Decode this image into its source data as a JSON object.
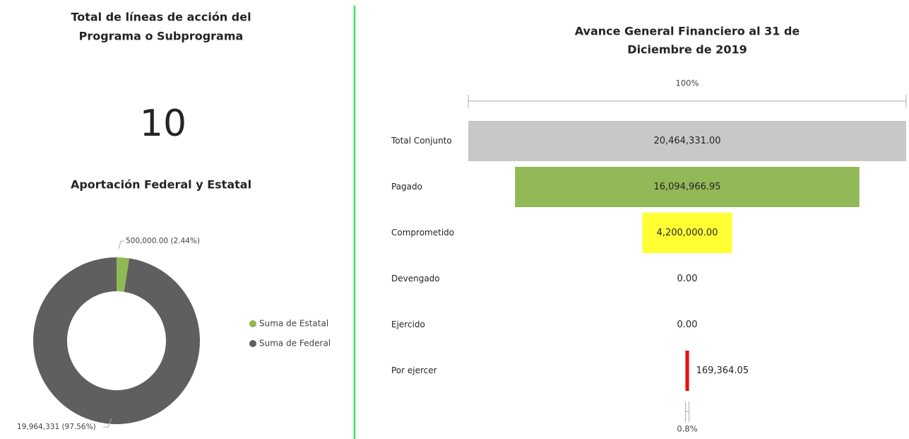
{
  "card": {
    "title": [
      "Total de líneas de acción del",
      "Programa o Subprograma"
    ],
    "value": 10
  },
  "chart_data": [
    {
      "type": "donut",
      "title": "Aportación Federal y Estatal",
      "categories": [
        "Suma de Estatal",
        "Suma de Federal"
      ],
      "values": [
        500000,
        19964331
      ],
      "value_labels": [
        "500,000.00 (2.44%)",
        "19,964,331 (97.56%)"
      ],
      "colors": [
        "#8fb955",
        "#5f5f5f"
      ]
    },
    {
      "type": "funnel",
      "title": [
        "Avance General Financiero al 31 de",
        "Diciembre de 2019"
      ],
      "top_label": "100%",
      "bottom_label": "0.8%",
      "categories": [
        "Total Conjunto",
        "Pagado",
        "Comprometido",
        "Devengado",
        "Ejercido",
        "Por ejercer"
      ],
      "values": [
        20464331,
        16094966.95,
        4200000,
        0,
        0,
        169364.05
      ],
      "value_labels": [
        "20,464,331.00",
        "16,094,966.95",
        "4,200,000.00",
        "0.00",
        "0.00",
        "169,364.05"
      ],
      "colors": [
        "#c8c8c8",
        "#92b858",
        "#ffff33",
        null,
        null,
        "#e81010"
      ]
    }
  ]
}
